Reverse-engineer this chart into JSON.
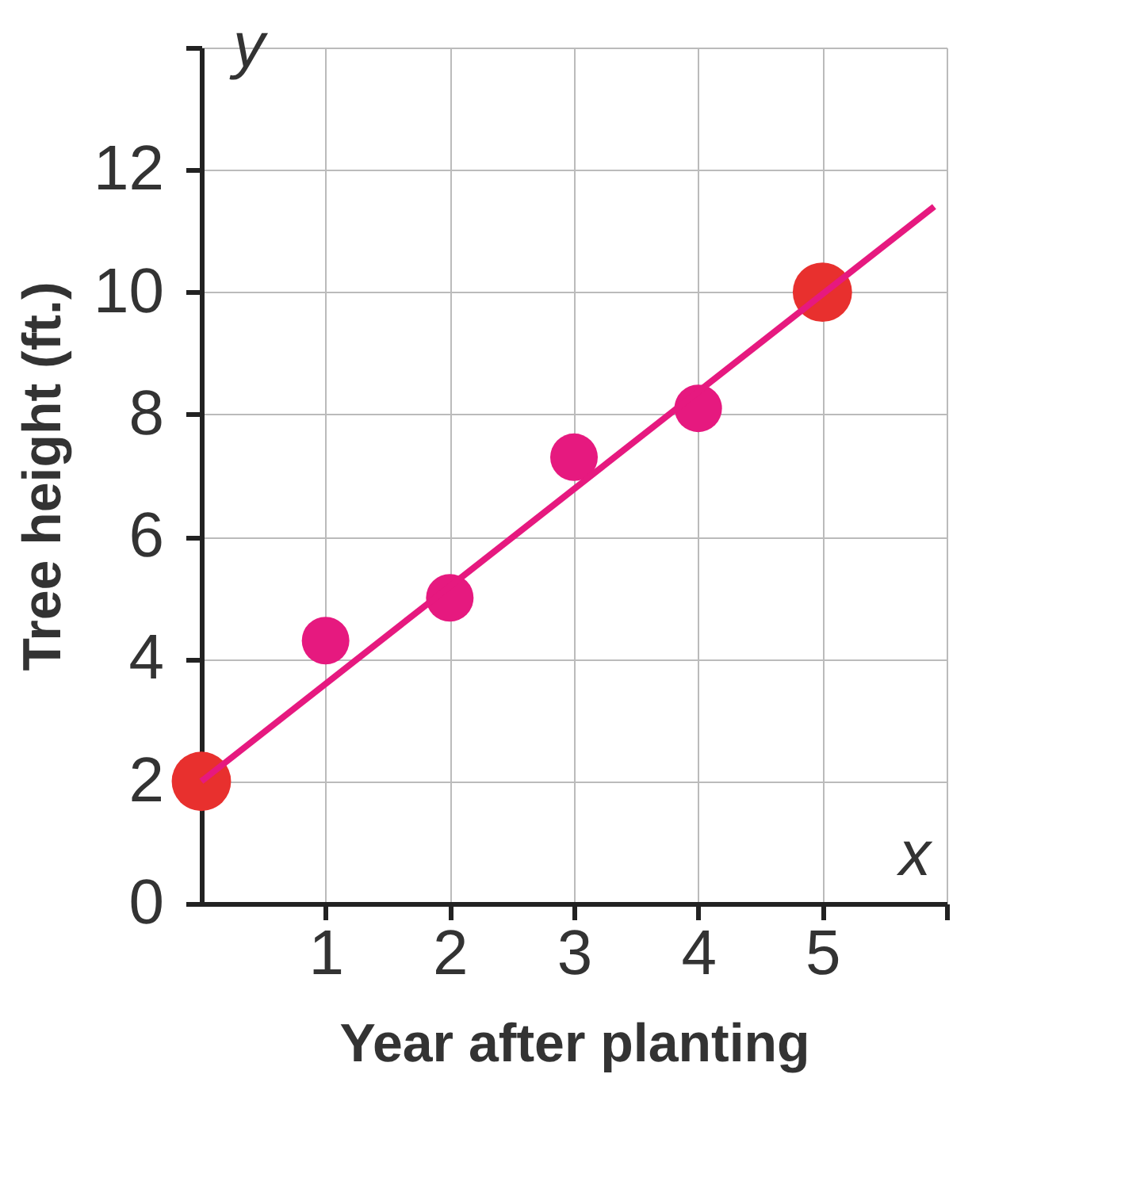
{
  "chart_data": {
    "type": "scatter",
    "xlabel": "Year after planting",
    "ylabel": "Tree height (ft.)",
    "annotations": [
      "x",
      "y"
    ],
    "xlim": [
      0,
      6
    ],
    "ylim": [
      0,
      14
    ],
    "xticks": [
      1,
      2,
      3,
      4,
      5,
      {
        "value": 6,
        "label": null
      }
    ],
    "yticks": [
      0,
      2,
      4,
      6,
      8,
      10,
      12,
      {
        "value": 14,
        "label": null
      }
    ],
    "grid": true,
    "marker": "circle",
    "series": [
      {
        "type": "line",
        "marker": "none",
        "color": "#e6197f",
        "x": [
          0,
          5.9
        ],
        "values": [
          2,
          11.4
        ]
      },
      {
        "color": "#e6197f",
        "x": [
          1,
          2,
          3,
          4
        ],
        "values": [
          4.3,
          5,
          7.3,
          8.1
        ]
      },
      {
        "color": "#e8302e",
        "x": [
          0,
          5
        ],
        "values": [
          2,
          10
        ]
      }
    ]
  }
}
